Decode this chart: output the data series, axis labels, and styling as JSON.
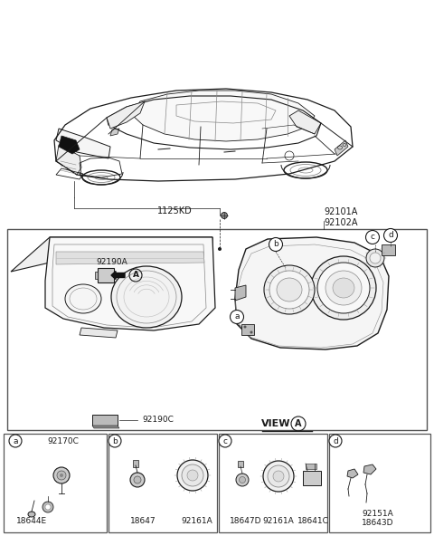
{
  "bg_color": "#ffffff",
  "line_color": "#1a1a1a",
  "gray1": "#555555",
  "gray2": "#888888",
  "gray3": "#bbbbbb",
  "gray4": "#dddddd",
  "part_labels": {
    "bolt": "1125KD",
    "hl_label": "92101A\n92102A",
    "conn_a": "92190A",
    "cover_c": "92190C",
    "view_a": "VIEW",
    "sa_92170C": "92170C",
    "sa_18644E": "18644E",
    "sb_18647": "18647",
    "sb_92161A": "92161A",
    "sc_18647D": "18647D",
    "sc_92161A": "92161A",
    "sc_18641C": "18641C",
    "sd_92151A": "92151A",
    "sd_18643D": "18643D"
  },
  "fig_width": 4.8,
  "fig_height": 5.92,
  "dpi": 100
}
